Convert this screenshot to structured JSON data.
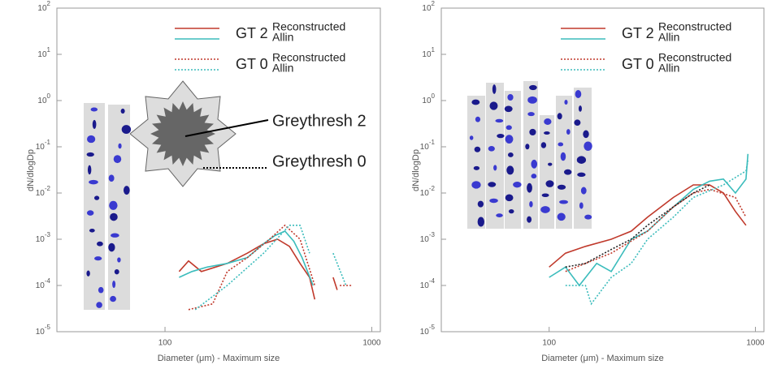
{
  "chart_data": [
    {
      "type": "line",
      "xlabel": "Diameter (μm) - Maximum size",
      "ylabel": "dN/dlogDp",
      "xlim": [
        30,
        1100
      ],
      "ylim": [
        1e-05,
        100
      ],
      "xscale": "log",
      "yscale": "log",
      "xticks": [
        100,
        1000
      ],
      "yticks": [
        {
          "value": 1e-05,
          "label": "10",
          "exp": "-5"
        },
        {
          "value": 0.0001,
          "label": "10",
          "exp": "-4"
        },
        {
          "value": 0.001,
          "label": "10",
          "exp": "-3"
        },
        {
          "value": 0.01,
          "label": "10",
          "exp": "-2"
        },
        {
          "value": 0.1,
          "label": "10",
          "exp": "-1"
        },
        {
          "value": 1,
          "label": "10",
          "exp": "0"
        },
        {
          "value": 10,
          "label": "10",
          "exp": "1"
        },
        {
          "value": 100,
          "label": "10",
          "exp": "2"
        }
      ],
      "annotations": [
        "Greythresh 2",
        "Greythresh 0"
      ],
      "series": [
        {
          "group": "GT 2",
          "name": "Reconstructed",
          "color": "#c0392b",
          "dash": false,
          "x": [
            117,
            130,
            150,
            200,
            250,
            300,
            350,
            400,
            450,
            500,
            530,
            null,
            650,
            680
          ],
          "values": [
            0.0002,
            0.00034,
            0.0002,
            0.0003,
            0.0005,
            0.0008,
            0.001,
            0.0007,
            0.0003,
            0.00015,
            5e-05,
            null,
            0.00015,
            8e-05
          ]
        },
        {
          "group": "GT 2",
          "name": "Allin",
          "color": "#3bbcbc",
          "dash": false,
          "x": [
            117,
            135,
            160,
            200,
            250,
            300,
            340,
            380,
            420,
            460,
            520
          ],
          "values": [
            0.00015,
            0.0002,
            0.00025,
            0.0003,
            0.0004,
            0.0008,
            0.0012,
            0.0015,
            0.0009,
            0.0004,
            0.0001
          ]
        },
        {
          "group": "GT 0",
          "name": "Reconstructed",
          "color": "#c0392b",
          "dash": true,
          "x": [
            130,
            170,
            200,
            250,
            320,
            380,
            450,
            530,
            null,
            700,
            800
          ],
          "values": [
            3e-05,
            4e-05,
            0.0002,
            0.0004,
            0.001,
            0.002,
            0.001,
            0.0001,
            null,
            0.0001,
            0.0001
          ]
        },
        {
          "group": "GT 0",
          "name": "Allin",
          "color": "#3bbcbc",
          "dash": true,
          "x": [
            140,
            200,
            300,
            400,
            450,
            500,
            null,
            650,
            750
          ],
          "values": [
            3e-05,
            0.0001,
            0.0005,
            0.002,
            0.002,
            0.0005,
            null,
            0.0005,
            0.0001
          ]
        }
      ]
    },
    {
      "type": "line",
      "xlabel": "Diameter (μm) - Maximum size",
      "ylabel": "dN/dlogDp",
      "xlim": [
        30,
        1100
      ],
      "ylim": [
        1e-05,
        100
      ],
      "xscale": "log",
      "yscale": "log",
      "xticks": [
        100,
        1000
      ],
      "yticks": [
        {
          "value": 1e-05,
          "label": "10",
          "exp": "-5"
        },
        {
          "value": 0.0001,
          "label": "10",
          "exp": "-4"
        },
        {
          "value": 0.001,
          "label": "10",
          "exp": "-3"
        },
        {
          "value": 0.01,
          "label": "10",
          "exp": "-2"
        },
        {
          "value": 0.1,
          "label": "10",
          "exp": "-1"
        },
        {
          "value": 1,
          "label": "10",
          "exp": "0"
        },
        {
          "value": 10,
          "label": "10",
          "exp": "1"
        },
        {
          "value": 100,
          "label": "10",
          "exp": "2"
        }
      ],
      "series": [
        {
          "group": "GT 2",
          "name": "Reconstructed",
          "color": "#c0392b",
          "dash": false,
          "x": [
            100,
            120,
            150,
            200,
            250,
            300,
            400,
            500,
            600,
            700,
            800,
            900
          ],
          "values": [
            0.00025,
            0.0005,
            0.0007,
            0.001,
            0.0015,
            0.003,
            0.008,
            0.015,
            0.015,
            0.01,
            0.004,
            0.002
          ]
        },
        {
          "group": "GT 2",
          "name": "Allin",
          "color": "#3bbcbc",
          "dash": false,
          "x": [
            100,
            120,
            140,
            170,
            200,
            250,
            300,
            400,
            500,
            600,
            700,
            800,
            900,
            920
          ],
          "values": [
            0.00015,
            0.00025,
            0.0001,
            0.0003,
            0.0002,
            0.001,
            0.0015,
            0.005,
            0.012,
            0.018,
            0.02,
            0.01,
            0.02,
            0.07
          ]
        },
        {
          "group": "GT 0",
          "name": "Reconstructed",
          "color": "#c0392b",
          "dash": true,
          "x": [
            120,
            150,
            200,
            300,
            400,
            500,
            600,
            800,
            900
          ],
          "values": [
            0.0002,
            0.0003,
            0.0005,
            0.0015,
            0.005,
            0.01,
            0.012,
            0.008,
            0.003
          ]
        },
        {
          "group": "GT 0",
          "name": "Allin",
          "color": "#3bbcbc",
          "dash": true,
          "x": [
            120,
            150,
            160,
            200,
            250,
            300,
            400,
            500,
            700,
            900,
            920
          ],
          "values": [
            0.0001,
            0.0001,
            4e-05,
            0.00015,
            0.0003,
            0.001,
            0.003,
            0.008,
            0.015,
            0.03,
            0.05
          ]
        },
        {
          "color": "#222222",
          "dash": true,
          "x": [
            120,
            150,
            200,
            250,
            300,
            400,
            500,
            600
          ],
          "values": [
            0.00025,
            0.0003,
            0.0006,
            0.001,
            0.002,
            0.005,
            0.01,
            0.015
          ]
        }
      ]
    }
  ]
}
